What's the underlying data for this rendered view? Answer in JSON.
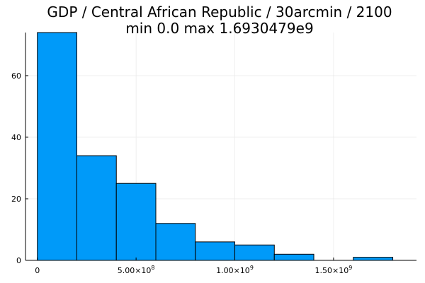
{
  "chart_data": {
    "type": "bar",
    "title": "GDP / Central African Republic / 30arcmin / 2100",
    "subtitle": "min 0.0  max 1.6930479e9",
    "xlabel": "",
    "ylabel": "",
    "bar_color": "#009AF9",
    "grid": true,
    "legend": "none",
    "xlim": [
      -60000000,
      1920000000
    ],
    "ylim": [
      0,
      74
    ],
    "bins": [
      {
        "x0": 0,
        "x1": 200000000,
        "count": 74
      },
      {
        "x0": 200000000,
        "x1": 400000000,
        "count": 34
      },
      {
        "x0": 400000000,
        "x1": 600000000,
        "count": 25
      },
      {
        "x0": 600000000,
        "x1": 800000000,
        "count": 12
      },
      {
        "x0": 800000000,
        "x1": 1000000000,
        "count": 6
      },
      {
        "x0": 1000000000,
        "x1": 1200000000,
        "count": 5
      },
      {
        "x0": 1200000000,
        "x1": 1400000000,
        "count": 2
      },
      {
        "x0": 1400000000,
        "x1": 1600000000,
        "count": 0
      },
      {
        "x0": 1600000000,
        "x1": 1800000000,
        "count": 1
      }
    ],
    "x_ticks": [
      {
        "value": 0,
        "base": "0",
        "exp": ""
      },
      {
        "value": 500000000,
        "base": "5.00×10",
        "exp": "8"
      },
      {
        "value": 1000000000,
        "base": "1.00×10",
        "exp": "9"
      },
      {
        "value": 1500000000,
        "base": "1.50×10",
        "exp": "9"
      }
    ],
    "y_ticks": [
      {
        "value": 0,
        "label": "0"
      },
      {
        "value": 20,
        "label": "20"
      },
      {
        "value": 40,
        "label": "40"
      },
      {
        "value": 60,
        "label": "60"
      }
    ]
  }
}
